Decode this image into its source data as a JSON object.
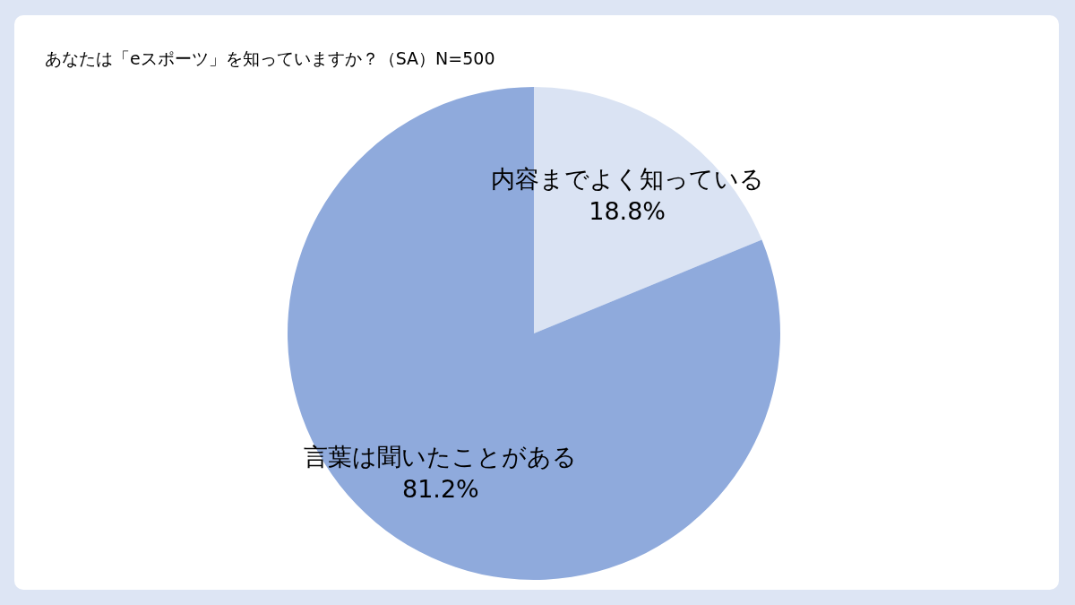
{
  "chart_data": {
    "type": "pie",
    "title": "あなたは「eスポーツ」を知っていますか？（SA）N=500",
    "categories": [
      "内容までよく知っている",
      "言葉は聞いたことがある"
    ],
    "values": [
      18.8,
      81.2
    ],
    "colors": [
      "#dae3f3",
      "#8faadc"
    ],
    "value_labels": [
      "18.8%",
      "81.2%"
    ],
    "legend": false
  }
}
